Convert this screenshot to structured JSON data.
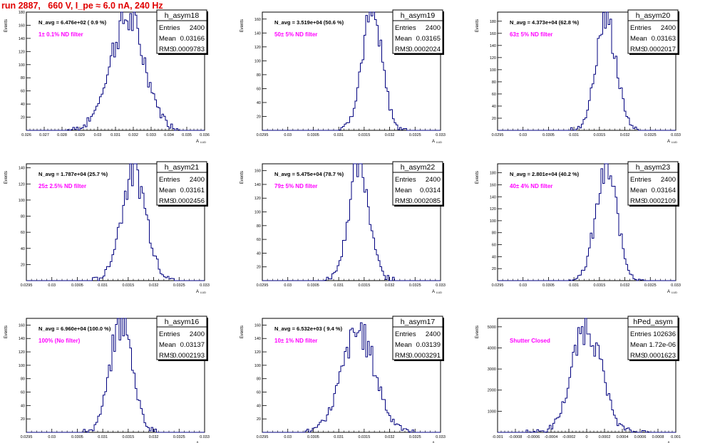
{
  "page_title": "run 2887,   660 V, I_pe ≈ 6.0 nA, 240 Hz",
  "stat_labels": {
    "entries": "Entries",
    "mean": "Mean",
    "rms": "RMS"
  },
  "axis_ylabel": "Events",
  "axis_xlabel": "A",
  "axis_xlabel_sub": "LUD",
  "colors": {
    "title": "#e00000",
    "annotation": "#ff00ff",
    "hist_line": "#00007f",
    "axes": "#000000"
  },
  "chart_data": [
    {
      "type": "histogram",
      "name": "h_asym18",
      "entries": "2400",
      "mean": "0.03166",
      "rms": "0.0009783",
      "navg": "N_avg = 6.476e+02 ( 0.9 %)",
      "annotation": "1± 0.1% ND filter",
      "xlim": [
        0.026,
        0.036
      ],
      "ylim": [
        0,
        180
      ],
      "x_ticks": [
        "0.026",
        "0.027",
        "0.028",
        "0.029",
        "0.03",
        "0.031",
        "0.032",
        "0.033",
        "0.034",
        "0.035",
        "0.036"
      ],
      "y_ticks": [
        "20",
        "40",
        "60",
        "80",
        "100",
        "120",
        "140",
        "160",
        "180"
      ],
      "mu": 0.03166,
      "sigma": 0.0009783,
      "peak": 170
    },
    {
      "type": "histogram",
      "name": "h_asym19",
      "entries": "2400",
      "mean": "0.03165",
      "rms": "0.0002024",
      "navg": "N_avg = 3.519e+04 (50.6 %)",
      "annotation": "50± 5% ND filter",
      "xlim": [
        0.0295,
        0.033
      ],
      "ylim": [
        0,
        170
      ],
      "x_ticks": [
        "0.0295",
        "0.03",
        "0.0305",
        "0.031",
        "0.0315",
        "0.032",
        "0.0325",
        "0.033"
      ],
      "y_ticks": [
        "20",
        "40",
        "60",
        "80",
        "100",
        "120",
        "140",
        "160"
      ],
      "mu": 0.03165,
      "sigma": 0.0002024,
      "peak": 163
    },
    {
      "type": "histogram",
      "name": "h_asym20",
      "entries": "2400",
      "mean": "0.03163",
      "rms": "0.0002017",
      "navg": "N_avg = 4.373e+04 (62.8 %)",
      "annotation": "63± 5% ND filter",
      "xlim": [
        0.0295,
        0.033
      ],
      "ylim": [
        0,
        195
      ],
      "x_ticks": [
        "0.0295",
        "0.03",
        "0.0305",
        "0.031",
        "0.0315",
        "0.032",
        "0.0325",
        "0.033"
      ],
      "y_ticks": [
        "20",
        "40",
        "60",
        "80",
        "100",
        "120",
        "140",
        "160",
        "180"
      ],
      "mu": 0.03163,
      "sigma": 0.0002017,
      "peak": 185
    },
    {
      "type": "histogram",
      "name": "h_asym21",
      "entries": "2400",
      "mean": "0.03161",
      "rms": "0.0002456",
      "navg": "N_avg = 1.787e+04 (25.7 %)",
      "annotation": "25± 2.5% ND filter",
      "xlim": [
        0.0295,
        0.033
      ],
      "ylim": [
        0,
        145
      ],
      "x_ticks": [
        "0.0295",
        "0.03",
        "0.0305",
        "0.031",
        "0.0315",
        "0.032",
        "0.0325",
        "0.033"
      ],
      "y_ticks": [
        "20",
        "40",
        "60",
        "80",
        "100",
        "120",
        "140"
      ],
      "mu": 0.03161,
      "sigma": 0.0002456,
      "peak": 138
    },
    {
      "type": "histogram",
      "name": "h_asym22",
      "entries": "2400",
      "mean": "0.0314",
      "rms": "0.0002085",
      "navg": "N_avg = 5.475e+04 (78.7 %)",
      "annotation": "79± 5% ND filter",
      "xlim": [
        0.0295,
        0.033
      ],
      "ylim": [
        0,
        170
      ],
      "x_ticks": [
        "0.0295",
        "0.03",
        "0.0305",
        "0.031",
        "0.0315",
        "0.032",
        "0.0325",
        "0.033"
      ],
      "y_ticks": [
        "20",
        "40",
        "60",
        "80",
        "100",
        "120",
        "140",
        "160"
      ],
      "mu": 0.0314,
      "sigma": 0.0002085,
      "peak": 165
    },
    {
      "type": "histogram",
      "name": "h_asym23",
      "entries": "2400",
      "mean": "0.03164",
      "rms": "0.0002109",
      "navg": "N_avg = 2.801e+04 (40.2 %)",
      "annotation": "40± 4% ND filter",
      "xlim": [
        0.0295,
        0.033
      ],
      "ylim": [
        0,
        195
      ],
      "x_ticks": [
        "0.0295",
        "0.03",
        "0.0305",
        "0.031",
        "0.0315",
        "0.032",
        "0.0325",
        "0.033"
      ],
      "y_ticks": [
        "20",
        "40",
        "60",
        "80",
        "100",
        "120",
        "140",
        "160",
        "180"
      ],
      "mu": 0.03164,
      "sigma": 0.0002109,
      "peak": 182
    },
    {
      "type": "histogram",
      "name": "h_asym16",
      "entries": "2400",
      "mean": "0.03137",
      "rms": "0.0002193",
      "navg": "N_avg = 6.960e+04 (100.0 %)",
      "annotation": "100% (No filter)",
      "xlim": [
        0.0295,
        0.033
      ],
      "ylim": [
        0,
        170
      ],
      "x_ticks": [
        "0.0295",
        "0.03",
        "0.0305",
        "0.031",
        "0.0315",
        "0.032",
        "0.0325",
        "0.033"
      ],
      "y_ticks": [
        "20",
        "40",
        "60",
        "80",
        "100",
        "120",
        "140",
        "160"
      ],
      "mu": 0.03137,
      "sigma": 0.0002193,
      "peak": 165
    },
    {
      "type": "histogram",
      "name": "h_asym17",
      "entries": "2400",
      "mean": "0.03139",
      "rms": "0.0003291",
      "navg": "N_avg = 6.532e+03 ( 9.4 %)",
      "annotation": "10± 1% ND filter",
      "xlim": [
        0.0295,
        0.033
      ],
      "ylim": [
        0,
        170
      ],
      "x_ticks": [
        "0.0295",
        "0.03",
        "0.0305",
        "0.031",
        "0.0315",
        "0.032",
        "0.0325",
        "0.033"
      ],
      "y_ticks": [
        "20",
        "40",
        "60",
        "80",
        "100",
        "120",
        "140",
        "160"
      ],
      "mu": 0.03139,
      "sigma": 0.0003291,
      "peak": 150
    },
    {
      "type": "histogram",
      "name": "hPed_asym",
      "entries": "102636",
      "mean": "1.72e-06",
      "rms": "0.0001623",
      "navg": "",
      "annotation": "Shutter Closed",
      "xlim": [
        -0.001,
        0.001
      ],
      "ylim": [
        0,
        5400
      ],
      "x_ticks": [
        "-0.001",
        "-0.0008",
        "-0.0006",
        "-0.0004",
        "-0.0002",
        "0",
        "0.0002",
        "0.0004",
        "0.0006",
        "0.0008",
        "0.001"
      ],
      "y_ticks": [
        "1000",
        "2000",
        "3000",
        "4000",
        "5000"
      ],
      "mu": 1.72e-06,
      "sigma": 0.0001623,
      "peak": 5100
    }
  ]
}
